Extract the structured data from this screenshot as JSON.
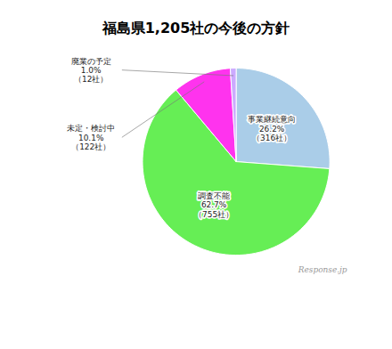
{
  "chart_data": {
    "type": "pie",
    "title": "福島県1,205社の今後の方針",
    "categories": [
      "事業継続意向",
      "調査不能",
      "未定・検討中",
      "廃業の予定"
    ],
    "values": [
      26.2,
      62.7,
      10.1,
      1.0
    ],
    "value_labels": [
      "26.2%",
      "62.7%",
      "10.1%",
      "1.0%"
    ],
    "count_labels": [
      "（316社）",
      "（755社）",
      "（122社）",
      "（12社）"
    ],
    "colors": [
      "#aacde8",
      "#66ee55",
      "#ff33ee",
      "#ccaaff"
    ],
    "data_labels": true,
    "watermark": "Response.jp"
  }
}
